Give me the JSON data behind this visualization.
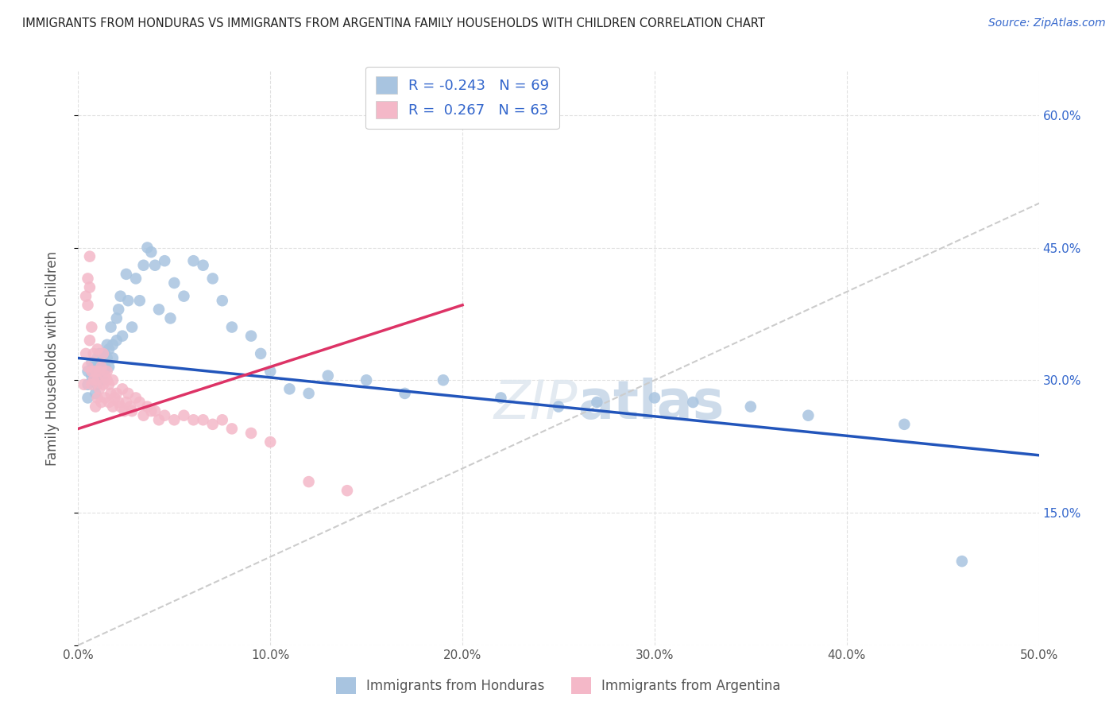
{
  "title": "IMMIGRANTS FROM HONDURAS VS IMMIGRANTS FROM ARGENTINA FAMILY HOUSEHOLDS WITH CHILDREN CORRELATION CHART",
  "source": "Source: ZipAtlas.com",
  "ylabel": "Family Households with Children",
  "xlim": [
    0.0,
    0.5
  ],
  "ylim": [
    0.0,
    0.65
  ],
  "xticks": [
    0.0,
    0.1,
    0.2,
    0.3,
    0.4,
    0.5
  ],
  "yticks": [
    0.0,
    0.15,
    0.3,
    0.45,
    0.6
  ],
  "R_honduras": -0.243,
  "N_honduras": 69,
  "R_argentina": 0.267,
  "N_argentina": 63,
  "color_honduras": "#a8c4e0",
  "color_argentina": "#f4b8c8",
  "line_color_honduras": "#2255bb",
  "line_color_argentina": "#dd3366",
  "diag_line_color": "#cccccc",
  "background_color": "#ffffff",
  "grid_color": "#dddddd",
  "honduras_line_x0": 0.0,
  "honduras_line_y0": 0.325,
  "honduras_line_x1": 0.5,
  "honduras_line_y1": 0.215,
  "argentina_line_x0": 0.0,
  "argentina_line_y0": 0.245,
  "argentina_line_x1": 0.2,
  "argentina_line_y1": 0.385,
  "honduras_x": [
    0.005,
    0.005,
    0.005,
    0.007,
    0.007,
    0.008,
    0.008,
    0.009,
    0.009,
    0.01,
    0.01,
    0.01,
    0.011,
    0.011,
    0.012,
    0.012,
    0.013,
    0.013,
    0.014,
    0.014,
    0.015,
    0.015,
    0.016,
    0.016,
    0.017,
    0.018,
    0.018,
    0.02,
    0.02,
    0.021,
    0.022,
    0.023,
    0.025,
    0.026,
    0.028,
    0.03,
    0.032,
    0.034,
    0.036,
    0.038,
    0.04,
    0.042,
    0.045,
    0.048,
    0.05,
    0.055,
    0.06,
    0.065,
    0.07,
    0.075,
    0.08,
    0.09,
    0.095,
    0.1,
    0.11,
    0.12,
    0.13,
    0.15,
    0.17,
    0.19,
    0.22,
    0.25,
    0.27,
    0.3,
    0.32,
    0.35,
    0.38,
    0.43,
    0.46
  ],
  "honduras_y": [
    0.31,
    0.295,
    0.28,
    0.32,
    0.305,
    0.315,
    0.3,
    0.285,
    0.31,
    0.325,
    0.31,
    0.295,
    0.33,
    0.315,
    0.32,
    0.305,
    0.31,
    0.3,
    0.33,
    0.315,
    0.34,
    0.325,
    0.335,
    0.315,
    0.36,
    0.34,
    0.325,
    0.37,
    0.345,
    0.38,
    0.395,
    0.35,
    0.42,
    0.39,
    0.36,
    0.415,
    0.39,
    0.43,
    0.45,
    0.445,
    0.43,
    0.38,
    0.435,
    0.37,
    0.41,
    0.395,
    0.435,
    0.43,
    0.415,
    0.39,
    0.36,
    0.35,
    0.33,
    0.31,
    0.29,
    0.285,
    0.305,
    0.3,
    0.285,
    0.3,
    0.28,
    0.27,
    0.275,
    0.28,
    0.275,
    0.27,
    0.26,
    0.25,
    0.095
  ],
  "argentina_x": [
    0.003,
    0.004,
    0.004,
    0.005,
    0.005,
    0.005,
    0.006,
    0.006,
    0.006,
    0.007,
    0.007,
    0.007,
    0.008,
    0.008,
    0.009,
    0.009,
    0.01,
    0.01,
    0.01,
    0.011,
    0.011,
    0.012,
    0.012,
    0.013,
    0.013,
    0.014,
    0.014,
    0.015,
    0.015,
    0.016,
    0.016,
    0.017,
    0.018,
    0.018,
    0.019,
    0.02,
    0.021,
    0.022,
    0.023,
    0.024,
    0.025,
    0.026,
    0.027,
    0.028,
    0.03,
    0.032,
    0.034,
    0.036,
    0.038,
    0.04,
    0.042,
    0.045,
    0.05,
    0.055,
    0.06,
    0.065,
    0.07,
    0.075,
    0.08,
    0.09,
    0.1,
    0.12,
    0.14
  ],
  "argentina_y": [
    0.295,
    0.33,
    0.395,
    0.385,
    0.315,
    0.415,
    0.345,
    0.405,
    0.44,
    0.31,
    0.36,
    0.295,
    0.33,
    0.3,
    0.27,
    0.31,
    0.28,
    0.3,
    0.335,
    0.29,
    0.31,
    0.275,
    0.315,
    0.295,
    0.33,
    0.28,
    0.305,
    0.3,
    0.31,
    0.275,
    0.295,
    0.285,
    0.27,
    0.3,
    0.28,
    0.285,
    0.275,
    0.27,
    0.29,
    0.265,
    0.275,
    0.285,
    0.27,
    0.265,
    0.28,
    0.275,
    0.26,
    0.27,
    0.265,
    0.265,
    0.255,
    0.26,
    0.255,
    0.26,
    0.255,
    0.255,
    0.25,
    0.255,
    0.245,
    0.24,
    0.23,
    0.185,
    0.175
  ]
}
